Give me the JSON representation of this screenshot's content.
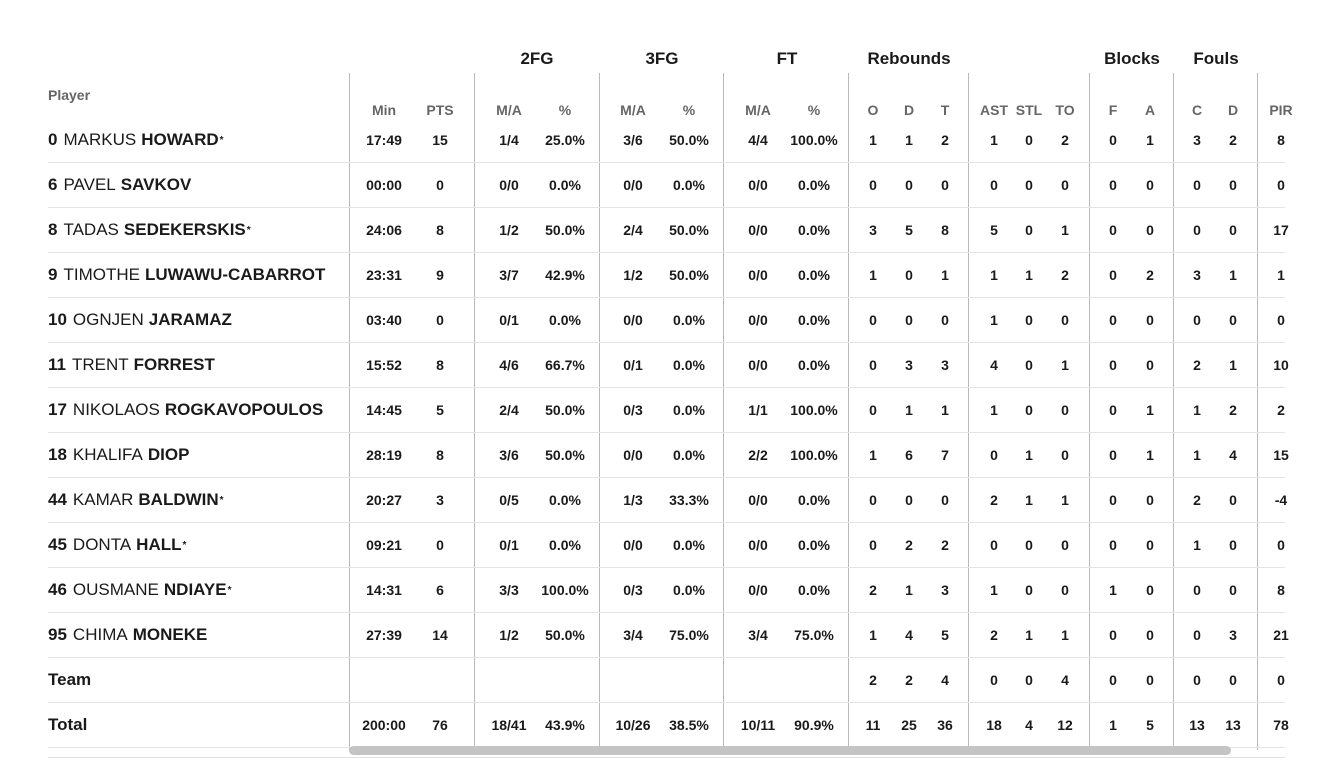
{
  "header": {
    "player_label": "Player",
    "groups": {
      "fg2": "2FG",
      "fg3": "3FG",
      "ft": "FT",
      "rebounds": "Rebounds",
      "blocks": "Blocks",
      "fouls": "Fouls"
    },
    "columns": [
      "Min",
      "PTS",
      "M/A",
      "%",
      "M/A",
      "%",
      "M/A",
      "%",
      "O",
      "D",
      "T",
      "AST",
      "STL",
      "TO",
      "F",
      "A",
      "C",
      "D",
      "PIR"
    ]
  },
  "players": [
    {
      "num": "0",
      "first": "MARKUS",
      "last": "HOWARD",
      "starter": "*",
      "stats": [
        "17:49",
        "15",
        "1/4",
        "25.0%",
        "3/6",
        "50.0%",
        "4/4",
        "100.0%",
        "1",
        "1",
        "2",
        "1",
        "0",
        "2",
        "0",
        "1",
        "3",
        "2",
        "8"
      ]
    },
    {
      "num": "6",
      "first": "PAVEL",
      "last": "SAVKOV",
      "starter": "",
      "stats": [
        "00:00",
        "0",
        "0/0",
        "0.0%",
        "0/0",
        "0.0%",
        "0/0",
        "0.0%",
        "0",
        "0",
        "0",
        "0",
        "0",
        "0",
        "0",
        "0",
        "0",
        "0",
        "0"
      ]
    },
    {
      "num": "8",
      "first": "TADAS",
      "last": "SEDEKERSKIS",
      "starter": "*",
      "stats": [
        "24:06",
        "8",
        "1/2",
        "50.0%",
        "2/4",
        "50.0%",
        "0/0",
        "0.0%",
        "3",
        "5",
        "8",
        "5",
        "0",
        "1",
        "0",
        "0",
        "0",
        "0",
        "17"
      ]
    },
    {
      "num": "9",
      "first": "TIMOTHE",
      "last": "LUWAWU-CABARROT",
      "starter": "",
      "stats": [
        "23:31",
        "9",
        "3/7",
        "42.9%",
        "1/2",
        "50.0%",
        "0/0",
        "0.0%",
        "1",
        "0",
        "1",
        "1",
        "1",
        "2",
        "0",
        "2",
        "3",
        "1",
        "1"
      ]
    },
    {
      "num": "10",
      "first": "OGNJEN",
      "last": "JARAMAZ",
      "starter": "",
      "stats": [
        "03:40",
        "0",
        "0/1",
        "0.0%",
        "0/0",
        "0.0%",
        "0/0",
        "0.0%",
        "0",
        "0",
        "0",
        "1",
        "0",
        "0",
        "0",
        "0",
        "0",
        "0",
        "0"
      ]
    },
    {
      "num": "11",
      "first": "TRENT",
      "last": "FORREST",
      "starter": "",
      "stats": [
        "15:52",
        "8",
        "4/6",
        "66.7%",
        "0/1",
        "0.0%",
        "0/0",
        "0.0%",
        "0",
        "3",
        "3",
        "4",
        "0",
        "1",
        "0",
        "0",
        "2",
        "1",
        "10"
      ]
    },
    {
      "num": "17",
      "first": "NIKOLAOS",
      "last": "ROGKAVOPOULOS",
      "starter": "",
      "stats": [
        "14:45",
        "5",
        "2/4",
        "50.0%",
        "0/3",
        "0.0%",
        "1/1",
        "100.0%",
        "0",
        "1",
        "1",
        "1",
        "0",
        "0",
        "0",
        "1",
        "1",
        "2",
        "2"
      ]
    },
    {
      "num": "18",
      "first": "KHALIFA",
      "last": "DIOP",
      "starter": "",
      "stats": [
        "28:19",
        "8",
        "3/6",
        "50.0%",
        "0/0",
        "0.0%",
        "2/2",
        "100.0%",
        "1",
        "6",
        "7",
        "0",
        "1",
        "0",
        "0",
        "1",
        "1",
        "4",
        "15"
      ]
    },
    {
      "num": "44",
      "first": "KAMAR",
      "last": "BALDWIN",
      "starter": "*",
      "stats": [
        "20:27",
        "3",
        "0/5",
        "0.0%",
        "1/3",
        "33.3%",
        "0/0",
        "0.0%",
        "0",
        "0",
        "0",
        "2",
        "1",
        "1",
        "0",
        "0",
        "2",
        "0",
        "-4"
      ]
    },
    {
      "num": "45",
      "first": "DONTA",
      "last": "HALL",
      "starter": "*",
      "stats": [
        "09:21",
        "0",
        "0/1",
        "0.0%",
        "0/0",
        "0.0%",
        "0/0",
        "0.0%",
        "0",
        "2",
        "2",
        "0",
        "0",
        "0",
        "0",
        "0",
        "1",
        "0",
        "0"
      ]
    },
    {
      "num": "46",
      "first": "OUSMANE",
      "last": "NDIAYE",
      "starter": "*",
      "stats": [
        "14:31",
        "6",
        "3/3",
        "100.0%",
        "0/3",
        "0.0%",
        "0/0",
        "0.0%",
        "2",
        "1",
        "3",
        "1",
        "0",
        "0",
        "1",
        "0",
        "0",
        "0",
        "8"
      ]
    },
    {
      "num": "95",
      "first": "CHIMA",
      "last": "MONEKE",
      "starter": "",
      "stats": [
        "27:39",
        "14",
        "1/2",
        "50.0%",
        "3/4",
        "75.0%",
        "3/4",
        "75.0%",
        "1",
        "4",
        "5",
        "2",
        "1",
        "1",
        "0",
        "0",
        "0",
        "3",
        "21"
      ]
    }
  ],
  "team": {
    "label": "Team",
    "stats": [
      "",
      "",
      "",
      "",
      "",
      "",
      "",
      "",
      "2",
      "2",
      "4",
      "0",
      "0",
      "4",
      "0",
      "0",
      "0",
      "0",
      "0"
    ]
  },
  "total": {
    "label": "Total",
    "stats": [
      "200:00",
      "76",
      "18/41",
      "43.9%",
      "10/26",
      "38.5%",
      "10/11",
      "90.9%",
      "11",
      "25",
      "36",
      "18",
      "4",
      "12",
      "1",
      "5",
      "13",
      "13",
      "78"
    ]
  },
  "scroll": {
    "visible_fraction": 0.94,
    "position": 0
  }
}
